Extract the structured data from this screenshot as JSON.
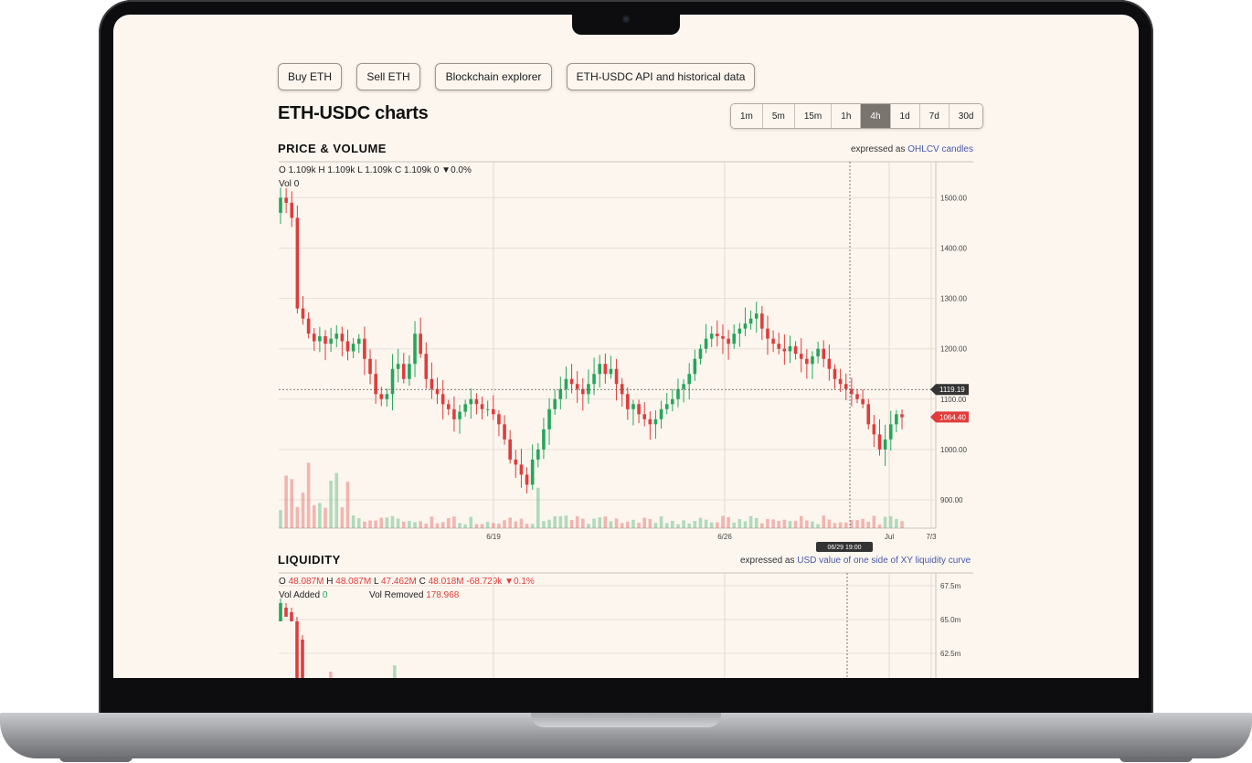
{
  "buttons": {
    "buy": "Buy ETH",
    "sell": "Sell ETH",
    "explorer": "Blockchain explorer",
    "api": "ETH-USDC API and historical data"
  },
  "page_title": "ETH-USDC charts",
  "intervals": [
    "1m",
    "5m",
    "15m",
    "1h",
    "4h",
    "1d",
    "7d",
    "30d"
  ],
  "active_interval": "4h",
  "price_volume": {
    "title": "PRICE & VOLUME",
    "expressed_prefix": "expressed as",
    "expressed_link": "OHLCV candles",
    "ohlc": {
      "o_label": "O",
      "o": "1.109k",
      "h_label": "H",
      "h": "1.109k",
      "l_label": "L",
      "l": "1.109k",
      "c_label": "C",
      "c": "1.109k",
      "change": "0",
      "change_pct": "▼0.0%"
    },
    "vol_label": "Vol",
    "vol": "0",
    "y_ticks": [
      "1500.00",
      "1400.00",
      "1300.00",
      "1200.00",
      "1100.00",
      "1000.00",
      "900.00"
    ],
    "x_ticks": [
      "6/19",
      "6/26",
      "Jul",
      "7/3"
    ],
    "crosshair_price": "1119.19",
    "last_price": "1064.40",
    "crosshair_time": "06/29 19:00"
  },
  "liquidity": {
    "title": "LIQUIDITY",
    "expressed_prefix": "expressed as",
    "expressed_link": "USD value of one side of XY liquidity curve",
    "ohlc": {
      "o_label": "O",
      "o": "48.087M",
      "h_label": "H",
      "h": "48.087M",
      "l_label": "L",
      "l": "47.462M",
      "c_label": "C",
      "c": "48.018M",
      "change": "-68.729k",
      "change_pct": "▼0.1%"
    },
    "vol_added_label": "Vol Added",
    "vol_added": "0",
    "vol_removed_label": "Vol Removed",
    "vol_removed": "178.968",
    "y_ticks": [
      "67.5m",
      "65.0m",
      "62.5m"
    ]
  },
  "colors": {
    "up": "#26a65b",
    "down": "#e03c3c",
    "background": "#fcf6ef",
    "accent": "#4a58a8"
  },
  "chart_data": [
    {
      "type": "candlestick",
      "title": "PRICE & VOLUME",
      "x": [
        "6/19",
        "6/26",
        "Jul",
        "7/3"
      ],
      "ylim": [
        850,
        1550
      ],
      "close_series": [
        1500,
        1490,
        1460,
        1280,
        1260,
        1230,
        1215,
        1225,
        1210,
        1220,
        1230,
        1215,
        1195,
        1210,
        1220,
        1180,
        1150,
        1110,
        1100,
        1110,
        1160,
        1170,
        1140,
        1170,
        1230,
        1190,
        1140,
        1120,
        1110,
        1090,
        1080,
        1060,
        1075,
        1090,
        1100,
        1090,
        1080,
        1080,
        1070,
        1050,
        1020,
        980,
        970,
        950,
        930,
        980,
        1000,
        1040,
        1080,
        1100,
        1120,
        1140,
        1130,
        1120,
        1110,
        1130,
        1150,
        1170,
        1150,
        1160,
        1130,
        1110,
        1080,
        1090,
        1070,
        1060,
        1050,
        1060,
        1080,
        1090,
        1100,
        1120,
        1130,
        1150,
        1180,
        1200,
        1220,
        1230,
        1225,
        1220,
        1210,
        1230,
        1240,
        1250,
        1260,
        1270,
        1240,
        1220,
        1210,
        1200,
        1195,
        1205,
        1190,
        1180,
        1170,
        1185,
        1200,
        1180,
        1160,
        1140,
        1130,
        1120,
        1110,
        1100,
        1090,
        1050,
        1030,
        1000,
        1020,
        1050,
        1070,
        1064
      ],
      "crosshair_price": 1119.19,
      "last_price": 1064.4
    }
  ]
}
